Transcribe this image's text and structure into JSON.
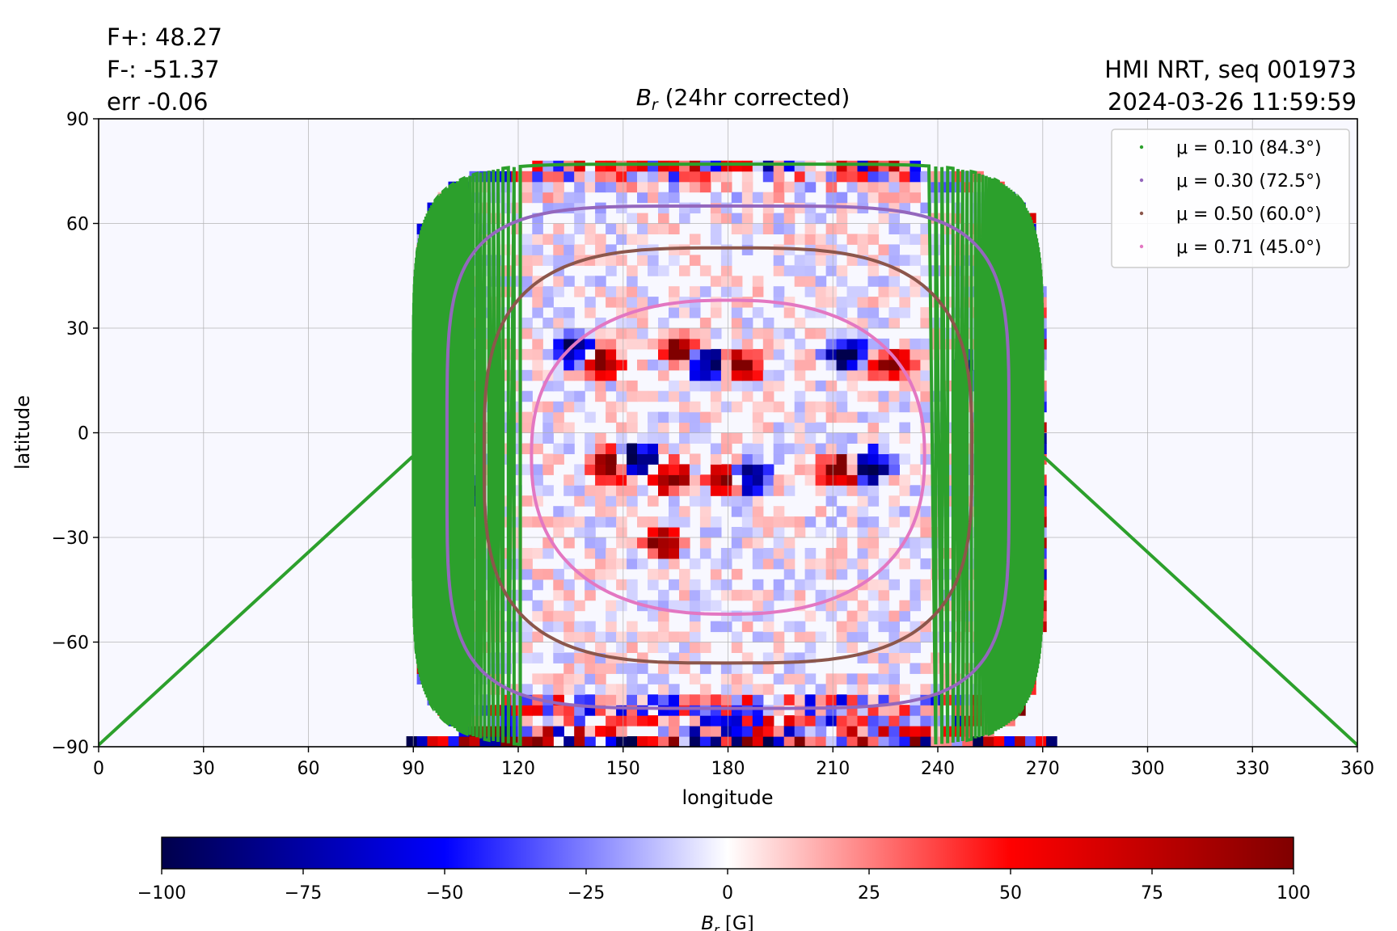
{
  "header": {
    "flux_pos": "F+: 48.27",
    "flux_neg": "F-: -51.37",
    "flux_err": "err -0.06",
    "instrument": "HMI NRT, seq 001973",
    "timestamp": "2024-03-26 11:59:59"
  },
  "chart_data": {
    "type": "heatmap",
    "title_symbol": "B",
    "title_subscript": "r",
    "title_rest": " (24hr corrected)",
    "xlabel": "longitude",
    "ylabel": "latitude",
    "xlim": [
      0,
      360
    ],
    "ylim": [
      -90,
      90
    ],
    "xticks": [
      0,
      30,
      60,
      90,
      120,
      150,
      180,
      210,
      240,
      270,
      300,
      330,
      360
    ],
    "yticks": [
      -90,
      -60,
      -30,
      0,
      30,
      60,
      90
    ],
    "ytick_labels": [
      "−90",
      "−60",
      "−30",
      "0",
      "30",
      "60",
      "90"
    ],
    "grid": true,
    "legend_position": "top-right",
    "disk_center": {
      "lon": 180,
      "lat": -6.6
    },
    "series": [
      {
        "label": "μ = 0.10 (84.3°)",
        "color": "#2ca02c",
        "angle_deg": 84.3,
        "lat_top": 77,
        "lat_bottom": -90
      },
      {
        "label": "μ = 0.30 (72.5°)",
        "color": "#9467bd",
        "angle_deg": 72.5,
        "lat_top": 65,
        "lat_bottom": -79
      },
      {
        "label": "μ = 0.50 (60.0°)",
        "color": "#8c564b",
        "angle_deg": 60.0,
        "lat_top": 53,
        "lat_bottom": -66
      },
      {
        "label": "μ = 0.71 (45.0°)",
        "color": "#e377c2",
        "angle_deg": 45.0,
        "lat_top": 38,
        "lat_bottom": -52
      }
    ],
    "active_regions": [
      {
        "lon": 135,
        "lat": 22,
        "sign": -1
      },
      {
        "lon": 142,
        "lat": 19,
        "sign": 1
      },
      {
        "lon": 165,
        "lat": 22,
        "sign": 1
      },
      {
        "lon": 173,
        "lat": 18,
        "sign": -1
      },
      {
        "lon": 182,
        "lat": 18,
        "sign": 1
      },
      {
        "lon": 212,
        "lat": 21,
        "sign": -1
      },
      {
        "lon": 225,
        "lat": 18,
        "sign": 1
      },
      {
        "lon": 255,
        "lat": 18,
        "sign": 1
      },
      {
        "lon": 250,
        "lat": 16,
        "sign": -1
      },
      {
        "lon": 210,
        "lat": -12,
        "sign": 1
      },
      {
        "lon": 220,
        "lat": -11,
        "sign": -1
      },
      {
        "lon": 185,
        "lat": -14,
        "sign": -1
      },
      {
        "lon": 178,
        "lat": -15,
        "sign": 1
      },
      {
        "lon": 162,
        "lat": -14,
        "sign": 1
      },
      {
        "lon": 153,
        "lat": -9,
        "sign": -1
      },
      {
        "lon": 144,
        "lat": -11,
        "sign": 1
      },
      {
        "lon": 102,
        "lat": -19,
        "sign": -1
      },
      {
        "lon": 160,
        "lat": -33,
        "sign": 1
      }
    ],
    "colorbar": {
      "label_symbol": "B",
      "label_subscript": "r",
      "label_unit": " [G]",
      "range": [
        -100,
        100
      ],
      "ticks": [
        -100,
        -75,
        -50,
        -25,
        0,
        25,
        50,
        75,
        100
      ],
      "tick_labels": [
        "−100",
        "−75",
        "−50",
        "−25",
        "0",
        "25",
        "50",
        "75",
        "100"
      ],
      "colormap": [
        "#00004c",
        "#0000ff",
        "#ffffff",
        "#ff0000",
        "#800000"
      ]
    }
  }
}
